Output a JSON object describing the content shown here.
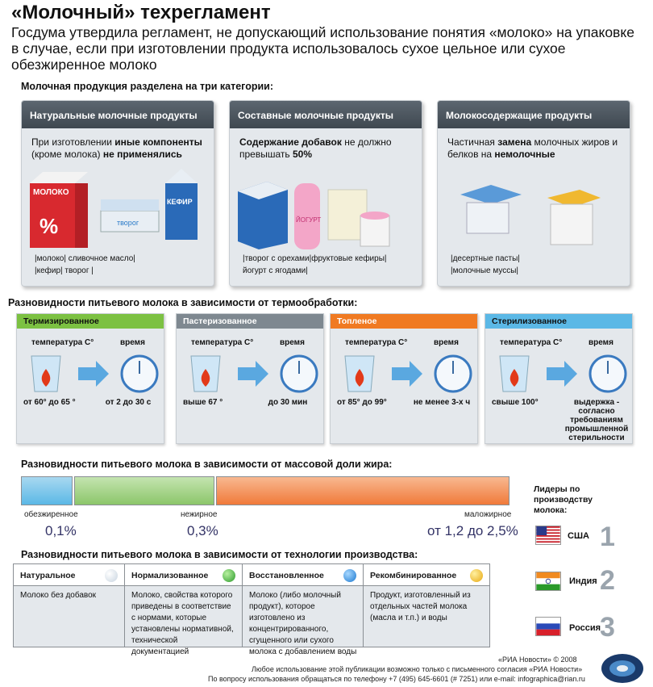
{
  "title": "«Молочный» техрегламент",
  "subtitle": "Госдума утвердила регламент, не допускающий использование понятия «молоко» на упаковке в случае, если при изготовлении продукта использовалось сухое цельное или сухое обезжиренное молоко",
  "categories_heading": "Молочная продукция разделена на три категории:",
  "categories": [
    {
      "title": "Натуральные молочные продукты",
      "desc_pre": "При изготовлении ",
      "desc_b1": "иные компоненты",
      "desc_mid": " (кроме молока) ",
      "desc_b2": "не применялись",
      "desc_post": "",
      "examples_1": "|молоко| сливочное масло|",
      "examples_2": "|кефир| творог |",
      "pack_labels": [
        "МОЛОКО",
        "%",
        "КЕФИР",
        "творог"
      ]
    },
    {
      "title": "Составные молочные продукты",
      "desc_pre": "",
      "desc_b1": "Содержание добавок",
      "desc_mid": " не должно превышать ",
      "desc_b2": "50%",
      "desc_post": "",
      "examples_1": "|творог с орехами|фруктовые кефиры|",
      "examples_2": "йогурт с ягодами|",
      "pack_labels": [
        "ЙОГУРТ"
      ]
    },
    {
      "title": "Молокосодержащие продукты",
      "desc_pre": "Частичная ",
      "desc_b1": "замена",
      "desc_mid": " молочных жиров и белков на ",
      "desc_b2": "немолочные",
      "desc_post": "",
      "examples_1": "|десертные пасты|",
      "examples_2": "|молочные муссы|",
      "pack_labels": []
    }
  ],
  "heat_heading": "Разновидности питьевого молока в зависимости от термообработки:",
  "heat": [
    {
      "name": "Термизированное",
      "color": "#7cc142",
      "temp_label": "температура С°",
      "time_label": "время",
      "temp": "от 60° до 65 °",
      "time": "от 2 до 30 с"
    },
    {
      "name": "Пастеризованное",
      "color": "#7e8890",
      "temp_label": "температура С°",
      "time_label": "время",
      "temp": "выше 67 °",
      "time": "до 30 мин"
    },
    {
      "name": "Топленое",
      "color": "#f07a22",
      "temp_label": "температура С°",
      "time_label": "время",
      "temp": "от 85° до 99°",
      "time": "не менее 3-х ч"
    },
    {
      "name": "Стерилизованное",
      "color": "#5bb8e6",
      "temp_label": "температура С°",
      "time_label": "время",
      "temp": "свыше 100°",
      "time": "выдержка - согласно требованиям промышленной стерильности"
    }
  ],
  "fat_heading": "Разновидности питьевого молока в зависимости от массовой доли жира:",
  "fat": [
    {
      "label": "обезжиренное",
      "value": "0,1%",
      "color": "#5bb8e6"
    },
    {
      "label": "нежирное",
      "value": "0,3%",
      "color": "#8cc66a"
    },
    {
      "label": "маложирное",
      "value": "от 1,2 до 2,5%",
      "color": "#f07a3a"
    }
  ],
  "tech_heading": "Разновидности питьевого молока в зависимости от технологии производства:",
  "tech": [
    {
      "name": "Натуральное",
      "color": "#e8eef4",
      "desc": "Молоко без добавок"
    },
    {
      "name": "Нормализованное",
      "color": "#3aa83a",
      "desc": "Молоко, свойства которого приведены в соответствие с нормами, которые установлены нормативной, технической документацией"
    },
    {
      "name": "Восстановленное",
      "color": "#2a8ad8",
      "desc": "Молоко (либо молочный продукт), которое изготовлено из концентрированного, сгущенного или сухого молока с добавлением воды"
    },
    {
      "name": "Рекомбинированное",
      "color": "#f0b820",
      "desc": "Продукт, изготовленный из отдельных частей молока (масла и т.п.) и воды"
    }
  ],
  "leaders_title": "Лидеры по производству молока:",
  "leaders": [
    {
      "country": "США",
      "rank": "1"
    },
    {
      "country": "Индия",
      "rank": "2"
    },
    {
      "country": "Россия",
      "rank": "3"
    }
  ],
  "copyright": "«РИА Новости» © 2008",
  "footer_line1": "Любое использование этой публикации возможно только с письменного согласия «РИА Новости»",
  "footer_line2": "По вопросу использования обращаться по телефону +7 (495) 645-6601 (# 7251) или e-mail: infographica@rian.ru",
  "watermark": "риа новости"
}
